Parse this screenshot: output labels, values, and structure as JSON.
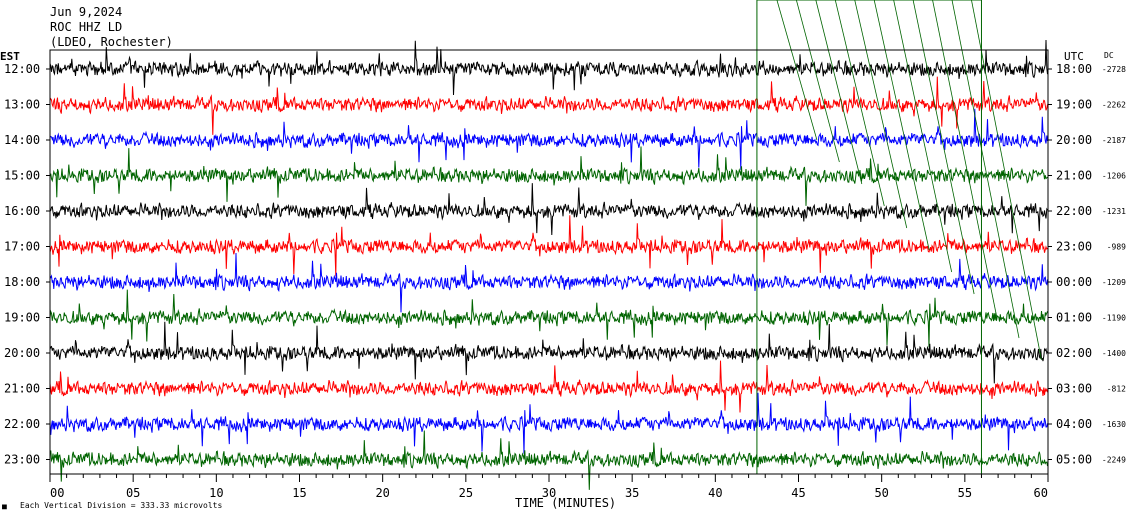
{
  "header": {
    "date": "Jun 9,2024",
    "channel": "ROC HHZ LD",
    "station": "(LDEO, Rochester)"
  },
  "left_axis_label": "EST",
  "right_axis_label": "UTC",
  "dc_label": "DC",
  "x_axis_label": "TIME (MINUTES)",
  "footer_note": "Each Vertical Division = 333.33 microvolts",
  "colors": {
    "c0": "#000000",
    "c1": "#ff0000",
    "c2": "#0000ff",
    "c3": "#006400",
    "frame": "#000000",
    "marker": "#006400"
  },
  "chart_data": {
    "type": "line",
    "subtype": "helicorder",
    "x_ticks": [
      "00",
      "05",
      "10",
      "15",
      "20",
      "25",
      "30",
      "35",
      "40",
      "45",
      "50",
      "55",
      "60"
    ],
    "xlim": [
      0,
      60
    ],
    "rows": [
      {
        "est": "12:00",
        "utc": "18:00",
        "dc": "-2728"
      },
      {
        "est": "13:00",
        "utc": "19:00",
        "dc": "-2262"
      },
      {
        "est": "14:00",
        "utc": "20:00",
        "dc": "-2187"
      },
      {
        "est": "15:00",
        "utc": "21:00",
        "dc": "-1206"
      },
      {
        "est": "16:00",
        "utc": "22:00",
        "dc": "-1231"
      },
      {
        "est": "17:00",
        "utc": "23:00",
        "dc": "-989"
      },
      {
        "est": "18:00",
        "utc": "00:00",
        "dc": "-1209"
      },
      {
        "est": "19:00",
        "utc": "01:00",
        "dc": "-1190"
      },
      {
        "est": "20:00",
        "utc": "02:00",
        "dc": "-1400"
      },
      {
        "est": "21:00",
        "utc": "03:00",
        "dc": "-812"
      },
      {
        "est": "22:00",
        "utc": "04:00",
        "dc": "-1630"
      },
      {
        "est": "23:00",
        "utc": "05:00",
        "dc": "-2249"
      }
    ],
    "trace_color_cycle": [
      "black",
      "red",
      "blue",
      "green"
    ],
    "marker_box_minutes": [
      42.5,
      56
    ]
  }
}
